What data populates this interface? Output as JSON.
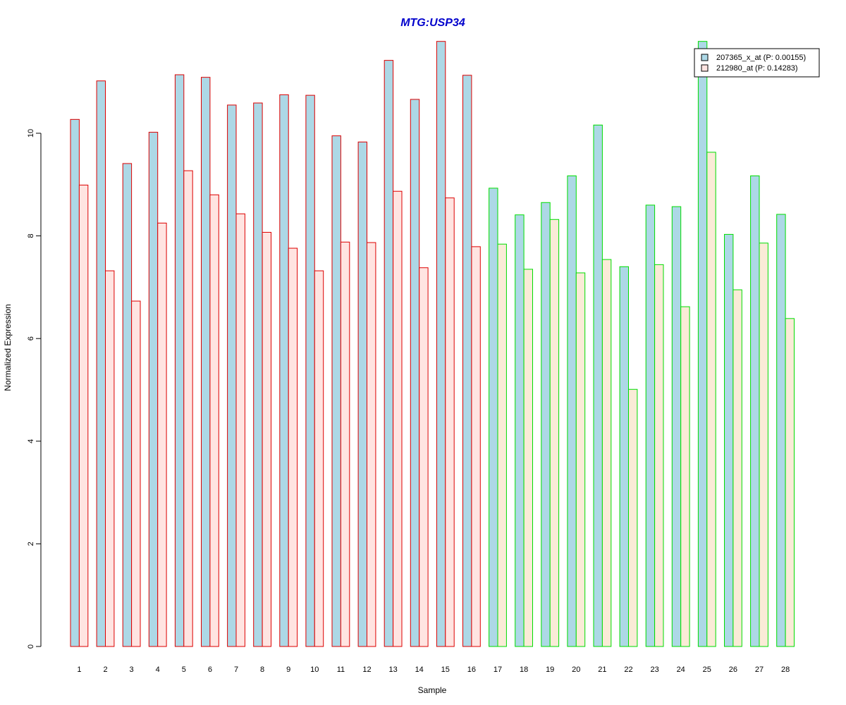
{
  "chart_data": {
    "type": "bar",
    "title": "MTG:USP34",
    "xlabel": "Sample",
    "ylabel": "Normalized Expression",
    "ylim": [
      0,
      11.8
    ],
    "yticks": [
      0,
      2,
      4,
      6,
      8,
      10
    ],
    "grid": false,
    "legend_position": "top-right",
    "categories": [
      "1",
      "2",
      "3",
      "4",
      "5",
      "6",
      "7",
      "8",
      "9",
      "10",
      "11",
      "12",
      "13",
      "14",
      "15",
      "16",
      "17",
      "18",
      "19",
      "20",
      "21",
      "22",
      "23",
      "24",
      "25",
      "26",
      "27",
      "28"
    ],
    "series": [
      {
        "name": "207365_x_at (P: 0.00155)",
        "values": [
          10.27,
          11.02,
          9.41,
          10.02,
          11.14,
          11.09,
          10.55,
          10.59,
          10.75,
          10.74,
          9.95,
          9.83,
          11.42,
          10.66,
          11.79,
          11.13,
          8.93,
          8.41,
          8.65,
          9.17,
          10.16,
          7.4,
          8.6,
          8.57,
          11.79,
          8.03,
          9.17,
          8.42
        ]
      },
      {
        "name": "212980_at (P: 0.14283)",
        "values": [
          8.99,
          7.32,
          6.73,
          8.25,
          9.27,
          8.8,
          8.43,
          8.07,
          7.76,
          7.32,
          7.88,
          7.87,
          8.87,
          7.38,
          8.74,
          7.79,
          7.84,
          7.35,
          8.32,
          7.28,
          7.54,
          5.01,
          7.44,
          6.62,
          9.63,
          6.95,
          7.86,
          6.39
        ]
      }
    ],
    "groups": [
      {
        "samples": [
          1,
          16
        ],
        "border_color": "#dd0000"
      },
      {
        "samples": [
          17,
          28
        ],
        "border_color": "#00dd00"
      }
    ],
    "fill_colors": {
      "series1": "#add8e6",
      "series2_group1": "#ffe4e1",
      "series2_group2": "#faebd7"
    },
    "title_color": "#0000cc"
  }
}
